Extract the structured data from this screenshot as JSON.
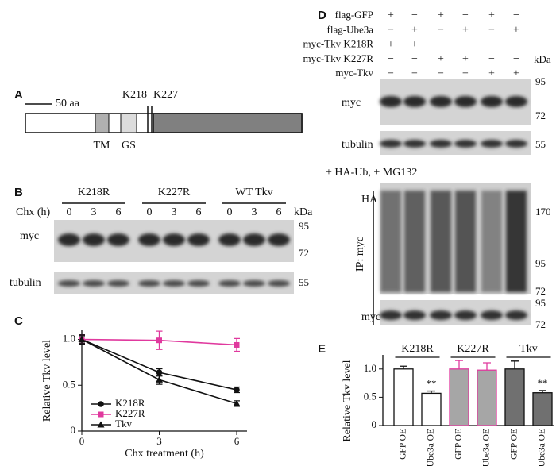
{
  "figure": {
    "panel_labels": [
      "A",
      "B",
      "C",
      "D",
      "E"
    ],
    "panel_a": {
      "scale_bar": "50 aa",
      "sites": [
        "K218",
        "K227"
      ],
      "domains": [
        "TM",
        "GS"
      ]
    },
    "panel_b": {
      "groups": [
        {
          "label": "K218R"
        },
        {
          "label": "K227R",
          "color": "#e0399e"
        },
        {
          "label": "WT Tkv"
        }
      ],
      "time_label": "Chx (h)",
      "timepoints": [
        0,
        3,
        6
      ],
      "kda_label": "kDa",
      "blots": [
        {
          "label": "myc",
          "markers": [
            95,
            72
          ]
        },
        {
          "label": "tubulin",
          "markers": [
            55
          ]
        }
      ]
    },
    "panel_d": {
      "rows": [
        {
          "label": "flag-GFP",
          "signs": [
            "+",
            "−",
            "+",
            "−",
            "+",
            "−"
          ]
        },
        {
          "label": "flag-Ube3a",
          "signs": [
            "−",
            "+",
            "−",
            "+",
            "−",
            "+"
          ]
        },
        {
          "label": "myc-Tkv K218R",
          "signs": [
            "+",
            "+",
            "−",
            "−",
            "−",
            "−"
          ]
        },
        {
          "label": "myc-Tkv K227R",
          "signs": [
            "−",
            "−",
            "+",
            "+",
            "−",
            "−"
          ],
          "color": "#e0399e"
        },
        {
          "label": "myc-Tkv",
          "signs": [
            "−",
            "−",
            "−",
            "−",
            "+",
            "+"
          ]
        }
      ],
      "kda_label": "kDa",
      "blots": [
        {
          "label": "myc",
          "markers": [
            95,
            72
          ]
        },
        {
          "label": "tubulin",
          "markers": [
            55
          ]
        }
      ],
      "treatment": "+ HA-Ub, + MG132",
      "ip_label": "IP: myc",
      "ip_blots": [
        {
          "label": "HA",
          "markers": [
            170,
            95,
            72
          ]
        },
        {
          "label": "myc",
          "markers": [
            95,
            72
          ]
        }
      ]
    }
  },
  "chart_data": [
    {
      "type": "line",
      "panel": "C",
      "xlabel": "Chx treatment (h)",
      "ylabel": "Relative Tkv level",
      "x": [
        0,
        3,
        6
      ],
      "xlim": [
        0,
        6.4
      ],
      "xticks": [
        0,
        3,
        6
      ],
      "ylim": [
        0,
        1.1
      ],
      "yticks": [
        0,
        0.5,
        {
          "value": 1,
          "label": "1.0"
        }
      ],
      "series": [
        {
          "name": "K218R",
          "color": "#111111",
          "marker": "circle",
          "values": [
            1,
            0.64,
            0.45
          ],
          "errors": [
            0.04,
            0.04,
            0.03
          ]
        },
        {
          "name": "K227R",
          "color": "#e0399e",
          "marker": "square",
          "values": [
            1,
            0.99,
            0.94
          ],
          "errors": [
            0.05,
            0.1,
            0.07
          ]
        },
        {
          "name": "Tkv",
          "color": "#111111",
          "marker": "triangle",
          "values": [
            1,
            0.56,
            0.3
          ],
          "errors": [
            0.05,
            0.05,
            0.03
          ]
        }
      ]
    },
    {
      "type": "bar",
      "panel": "E",
      "ylabel": "Relative Tkv level",
      "ylim": [
        0,
        1.25
      ],
      "yticks": [
        0,
        0.5,
        {
          "value": 1,
          "label": "1.0"
        }
      ],
      "groups": [
        "K218R",
        "K227R",
        "Tkv"
      ],
      "categories": [
        "GFP OE",
        "Ube3a OE",
        "GFP OE",
        "Ube3a OE",
        "GFP OE",
        "Ube3a OE"
      ],
      "values": [
        1,
        0.57,
        1,
        0.98,
        1,
        0.58
      ],
      "errors": [
        0.05,
        0.04,
        0.15,
        0.13,
        0.14,
        0.04
      ],
      "colors": [
        "#ffffff",
        "#ffffff",
        "#a6a6a6",
        "#a6a6a6",
        "#707070",
        "#707070"
      ],
      "edgecolors": [
        "#111111",
        "#111111",
        "#e0399e",
        "#e0399e",
        "#111111",
        "#111111"
      ],
      "significance": [
        null,
        "**",
        null,
        null,
        null,
        "**"
      ]
    }
  ]
}
